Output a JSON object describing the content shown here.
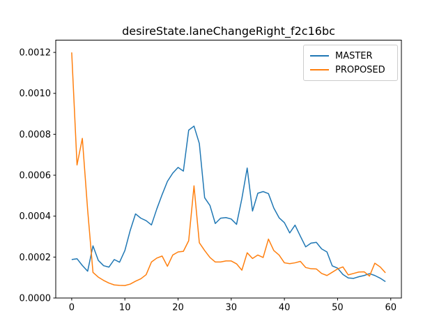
{
  "window": {
    "background_color": "#ffffff",
    "frame_color": "#000000",
    "text_color": "#000000"
  },
  "chart_data": {
    "type": "line",
    "title": "desireState.laneChangeRight_f2c16bc",
    "xlabel": "",
    "ylabel": "",
    "grid": false,
    "legend_position": "upper right",
    "legend_border_color": "#cccccc",
    "xlim": [
      -3,
      62
    ],
    "ylim": [
      0,
      0.00126
    ],
    "x_tick_values": [
      0,
      10,
      20,
      30,
      40,
      50,
      60
    ],
    "x_tick_labels": [
      "0",
      "10",
      "20",
      "30",
      "40",
      "50",
      "60"
    ],
    "y_tick_values": [
      0.0,
      0.0002,
      0.0004,
      0.0006,
      0.0008,
      0.001,
      0.0012
    ],
    "y_tick_labels": [
      "0.0000",
      "0.0002",
      "0.0004",
      "0.0006",
      "0.0008",
      "0.0010",
      "0.0012"
    ],
    "x": [
      0,
      1,
      2,
      3,
      4,
      5,
      6,
      7,
      8,
      9,
      10,
      11,
      12,
      13,
      14,
      15,
      16,
      17,
      18,
      19,
      20,
      21,
      22,
      23,
      24,
      25,
      26,
      27,
      28,
      29,
      30,
      31,
      32,
      33,
      34,
      35,
      36,
      37,
      38,
      39,
      40,
      41,
      42,
      43,
      44,
      45,
      46,
      47,
      48,
      49,
      50,
      51,
      52,
      53,
      54,
      55,
      56,
      57,
      58,
      59
    ],
    "series": [
      {
        "name": "MASTER",
        "color": "#1f77b4",
        "values": [
          0.000188,
          0.000192,
          0.000159,
          0.000131,
          0.000255,
          0.000184,
          0.000158,
          0.000151,
          0.000188,
          0.000175,
          0.000232,
          0.00033,
          0.000411,
          0.00039,
          0.000378,
          0.000357,
          0.000435,
          0.000505,
          0.00057,
          0.00061,
          0.000638,
          0.00062,
          0.00082,
          0.00084,
          0.000755,
          0.00049,
          0.000452,
          0.000364,
          0.00039,
          0.000393,
          0.000386,
          0.00036,
          0.000486,
          0.000635,
          0.000425,
          0.000512,
          0.00052,
          0.00051,
          0.00044,
          0.000392,
          0.000368,
          0.000318,
          0.000356,
          0.000302,
          0.00025,
          0.000268,
          0.000272,
          0.00024,
          0.000225,
          0.000157,
          0.000146,
          0.000115,
          9.8e-05,
          9.6e-05,
          0.000104,
          0.00011,
          0.000119,
          0.00011,
          9.7e-05,
          8e-05
        ]
      },
      {
        "name": "PROPOSED",
        "color": "#ff7f0e",
        "values": [
          0.0012,
          0.00065,
          0.00078,
          0.00043,
          0.000125,
          0.000102,
          8.6e-05,
          7.3e-05,
          6.4e-05,
          6.2e-05,
          6.1e-05,
          6.8e-05,
          8.2e-05,
          9.4e-05,
          0.000114,
          0.000176,
          0.000195,
          0.000205,
          0.000155,
          0.00021,
          0.000225,
          0.000228,
          0.00028,
          0.000548,
          0.00027,
          0.000232,
          0.000198,
          0.000176,
          0.000176,
          0.000181,
          0.000181,
          0.000167,
          0.000136,
          0.000221,
          0.000193,
          0.00021,
          0.000198,
          0.000288,
          0.000232,
          0.00021,
          0.000172,
          0.000168,
          0.000172,
          0.000179,
          0.000149,
          0.000143,
          0.000142,
          0.00012,
          0.00011,
          0.000126,
          0.000142,
          0.000152,
          0.000113,
          0.00012,
          0.000127,
          0.000128,
          0.000107,
          0.00017,
          0.000152,
          0.000123
        ]
      }
    ]
  }
}
